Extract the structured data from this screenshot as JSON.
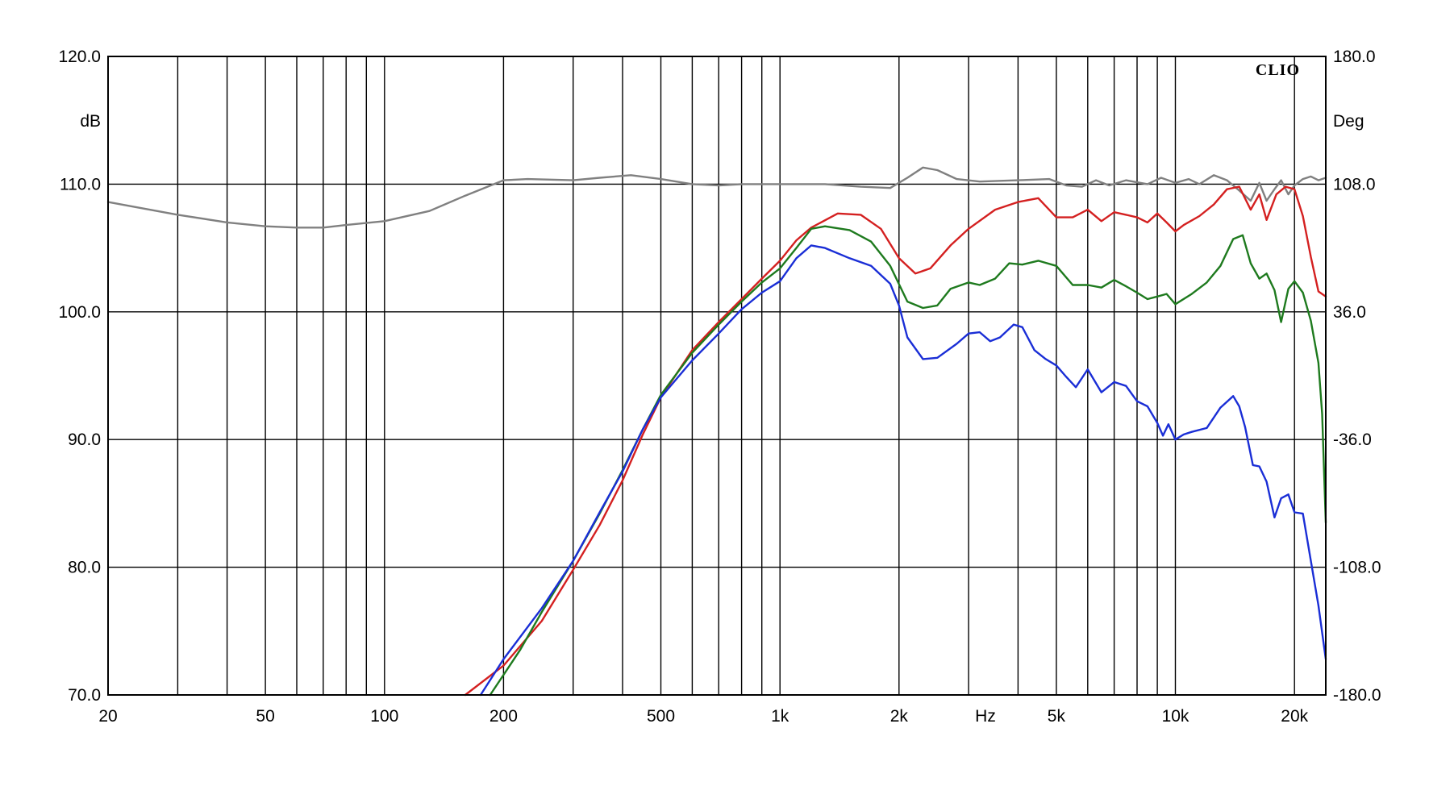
{
  "chart_data": {
    "type": "line",
    "brand": "CLIO",
    "xscale": "log",
    "xlim": [
      20,
      24000
    ],
    "ylim": [
      70,
      120
    ],
    "ylim_right": [
      -180,
      180
    ],
    "grid": true,
    "xlabel": "Hz",
    "ylabel": "dB",
    "ylabel_right": "Deg",
    "x_vertical_grid": [
      20,
      30,
      40,
      50,
      60,
      70,
      80,
      90,
      100,
      200,
      300,
      400,
      500,
      600,
      700,
      800,
      900,
      1000,
      2000,
      3000,
      4000,
      5000,
      6000,
      7000,
      8000,
      9000,
      10000,
      20000
    ],
    "x_ticks": [
      {
        "value": 20,
        "label": "20"
      },
      {
        "value": 50,
        "label": "50"
      },
      {
        "value": 100,
        "label": "100"
      },
      {
        "value": 200,
        "label": "200"
      },
      {
        "value": 500,
        "label": "500"
      },
      {
        "value": 1000,
        "label": "1k"
      },
      {
        "value": 2000,
        "label": "2k"
      },
      {
        "value": 5000,
        "label": "5k"
      },
      {
        "value": 10000,
        "label": "10k"
      },
      {
        "value": 20000,
        "label": "20k"
      }
    ],
    "y_ticks": [
      {
        "value": 70,
        "label": "70.0"
      },
      {
        "value": 80,
        "label": "80.0"
      },
      {
        "value": 90,
        "label": "90.0"
      },
      {
        "value": 100,
        "label": "100.0"
      },
      {
        "value": 110,
        "label": "110.0"
      },
      {
        "value": 120,
        "label": "120.0"
      }
    ],
    "y_right_ticks": [
      {
        "value": -180,
        "label": "-180.0"
      },
      {
        "value": -108,
        "label": "-108.0"
      },
      {
        "value": -36,
        "label": "-36.0"
      },
      {
        "value": 36,
        "label": "36.0"
      },
      {
        "value": 108,
        "label": "108.0"
      },
      {
        "value": 180,
        "label": "180.0"
      }
    ],
    "series": [
      {
        "color": "#808080",
        "points": [
          [
            20,
            108.6
          ],
          [
            30,
            107.6
          ],
          [
            40,
            107.0
          ],
          [
            50,
            106.7
          ],
          [
            60,
            106.6
          ],
          [
            70,
            106.6
          ],
          [
            80,
            106.8
          ],
          [
            100,
            107.1
          ],
          [
            130,
            107.9
          ],
          [
            160,
            109.1
          ],
          [
            200,
            110.3
          ],
          [
            230,
            110.4
          ],
          [
            300,
            110.3
          ],
          [
            350,
            110.5
          ],
          [
            420,
            110.7
          ],
          [
            500,
            110.4
          ],
          [
            600,
            110.0
          ],
          [
            700,
            109.9
          ],
          [
            800,
            110.0
          ],
          [
            1000,
            110.0
          ],
          [
            1300,
            110.0
          ],
          [
            1600,
            109.8
          ],
          [
            1900,
            109.7
          ],
          [
            2100,
            110.5
          ],
          [
            2300,
            111.3
          ],
          [
            2500,
            111.1
          ],
          [
            2800,
            110.4
          ],
          [
            3200,
            110.2
          ],
          [
            4000,
            110.3
          ],
          [
            4800,
            110.4
          ],
          [
            5300,
            109.9
          ],
          [
            5800,
            109.8
          ],
          [
            6300,
            110.3
          ],
          [
            6800,
            109.9
          ],
          [
            7500,
            110.3
          ],
          [
            8500,
            110.0
          ],
          [
            9200,
            110.5
          ],
          [
            10000,
            110.1
          ],
          [
            10800,
            110.4
          ],
          [
            11500,
            110.0
          ],
          [
            12500,
            110.7
          ],
          [
            13500,
            110.3
          ],
          [
            14500,
            109.5
          ],
          [
            15500,
            108.7
          ],
          [
            16300,
            110.1
          ],
          [
            17000,
            108.7
          ],
          [
            17800,
            109.6
          ],
          [
            18500,
            110.3
          ],
          [
            19300,
            109.2
          ],
          [
            20000,
            109.9
          ],
          [
            21000,
            110.4
          ],
          [
            22000,
            110.6
          ],
          [
            23000,
            110.3
          ],
          [
            24000,
            110.5
          ]
        ]
      },
      {
        "color": "#d42020",
        "points": [
          [
            160,
            70.0
          ],
          [
            200,
            72.3
          ],
          [
            250,
            75.8
          ],
          [
            300,
            79.8
          ],
          [
            350,
            83.3
          ],
          [
            400,
            86.8
          ],
          [
            450,
            90.4
          ],
          [
            500,
            93.3
          ],
          [
            600,
            97.0
          ],
          [
            700,
            99.2
          ],
          [
            800,
            101.0
          ],
          [
            900,
            102.6
          ],
          [
            1000,
            104.0
          ],
          [
            1100,
            105.6
          ],
          [
            1200,
            106.6
          ],
          [
            1400,
            107.7
          ],
          [
            1600,
            107.6
          ],
          [
            1800,
            106.5
          ],
          [
            2000,
            104.2
          ],
          [
            2200,
            103.0
          ],
          [
            2400,
            103.4
          ],
          [
            2700,
            105.2
          ],
          [
            3000,
            106.5
          ],
          [
            3500,
            108.0
          ],
          [
            4000,
            108.6
          ],
          [
            4500,
            108.9
          ],
          [
            5000,
            107.4
          ],
          [
            5500,
            107.4
          ],
          [
            6000,
            108.0
          ],
          [
            6500,
            107.1
          ],
          [
            7000,
            107.8
          ],
          [
            7500,
            107.6
          ],
          [
            8000,
            107.4
          ],
          [
            8500,
            107.0
          ],
          [
            9000,
            107.7
          ],
          [
            9500,
            107.0
          ],
          [
            10000,
            106.3
          ],
          [
            10500,
            106.8
          ],
          [
            11500,
            107.5
          ],
          [
            12500,
            108.4
          ],
          [
            13500,
            109.6
          ],
          [
            14500,
            109.8
          ],
          [
            15500,
            108.0
          ],
          [
            16300,
            109.2
          ],
          [
            17000,
            107.2
          ],
          [
            18000,
            109.2
          ],
          [
            19000,
            109.8
          ],
          [
            20000,
            109.6
          ],
          [
            21000,
            107.5
          ],
          [
            22000,
            104.3
          ],
          [
            23000,
            101.6
          ],
          [
            24000,
            101.2
          ]
        ]
      },
      {
        "color": "#1e7a1e",
        "points": [
          [
            185,
            70.0
          ],
          [
            220,
            73.5
          ],
          [
            250,
            76.5
          ],
          [
            300,
            80.5
          ],
          [
            350,
            84.2
          ],
          [
            400,
            87.6
          ],
          [
            450,
            90.8
          ],
          [
            500,
            93.5
          ],
          [
            600,
            96.8
          ],
          [
            700,
            99.0
          ],
          [
            800,
            100.8
          ],
          [
            900,
            102.3
          ],
          [
            1000,
            103.4
          ],
          [
            1100,
            105.0
          ],
          [
            1200,
            106.5
          ],
          [
            1300,
            106.7
          ],
          [
            1500,
            106.4
          ],
          [
            1700,
            105.5
          ],
          [
            1900,
            103.6
          ],
          [
            2100,
            100.8
          ],
          [
            2300,
            100.3
          ],
          [
            2500,
            100.5
          ],
          [
            2700,
            101.8
          ],
          [
            3000,
            102.3
          ],
          [
            3200,
            102.1
          ],
          [
            3500,
            102.6
          ],
          [
            3800,
            103.8
          ],
          [
            4100,
            103.7
          ],
          [
            4500,
            104.0
          ],
          [
            5000,
            103.6
          ],
          [
            5500,
            102.1
          ],
          [
            6000,
            102.1
          ],
          [
            6500,
            101.9
          ],
          [
            7000,
            102.5
          ],
          [
            7500,
            102.0
          ],
          [
            8000,
            101.5
          ],
          [
            8500,
            101.0
          ],
          [
            9000,
            101.2
          ],
          [
            9500,
            101.4
          ],
          [
            10000,
            100.6
          ],
          [
            11000,
            101.4
          ],
          [
            12000,
            102.3
          ],
          [
            13000,
            103.6
          ],
          [
            14000,
            105.7
          ],
          [
            14800,
            106.0
          ],
          [
            15500,
            103.8
          ],
          [
            16300,
            102.6
          ],
          [
            17000,
            103.0
          ],
          [
            17800,
            101.7
          ],
          [
            18500,
            99.2
          ],
          [
            19300,
            101.8
          ],
          [
            20000,
            102.4
          ],
          [
            21000,
            101.5
          ],
          [
            22000,
            99.3
          ],
          [
            23000,
            96.0
          ],
          [
            23500,
            92.0
          ],
          [
            24000,
            83.5
          ]
        ]
      },
      {
        "color": "#1a2ed6",
        "points": [
          [
            175,
            70.0
          ],
          [
            200,
            72.8
          ],
          [
            250,
            76.8
          ],
          [
            300,
            80.5
          ],
          [
            350,
            84.3
          ],
          [
            400,
            87.5
          ],
          [
            450,
            90.8
          ],
          [
            500,
            93.3
          ],
          [
            600,
            96.2
          ],
          [
            700,
            98.3
          ],
          [
            800,
            100.2
          ],
          [
            900,
            101.5
          ],
          [
            1000,
            102.4
          ],
          [
            1100,
            104.2
          ],
          [
            1200,
            105.2
          ],
          [
            1300,
            105.0
          ],
          [
            1500,
            104.2
          ],
          [
            1700,
            103.6
          ],
          [
            1900,
            102.2
          ],
          [
            2000,
            100.5
          ],
          [
            2100,
            98.0
          ],
          [
            2300,
            96.3
          ],
          [
            2500,
            96.4
          ],
          [
            2800,
            97.5
          ],
          [
            3000,
            98.3
          ],
          [
            3200,
            98.4
          ],
          [
            3400,
            97.7
          ],
          [
            3600,
            98.0
          ],
          [
            3900,
            99.0
          ],
          [
            4100,
            98.8
          ],
          [
            4400,
            97.0
          ],
          [
            4700,
            96.3
          ],
          [
            5000,
            95.8
          ],
          [
            5300,
            94.9
          ],
          [
            5600,
            94.1
          ],
          [
            6000,
            95.5
          ],
          [
            6500,
            93.7
          ],
          [
            7000,
            94.5
          ],
          [
            7500,
            94.2
          ],
          [
            8000,
            93.0
          ],
          [
            8500,
            92.6
          ],
          [
            9000,
            91.3
          ],
          [
            9300,
            90.3
          ],
          [
            9600,
            91.2
          ],
          [
            10000,
            90.0
          ],
          [
            10500,
            90.4
          ],
          [
            11000,
            90.6
          ],
          [
            12000,
            90.9
          ],
          [
            13000,
            92.5
          ],
          [
            14000,
            93.4
          ],
          [
            14500,
            92.6
          ],
          [
            15000,
            91.0
          ],
          [
            15700,
            88.0
          ],
          [
            16300,
            87.9
          ],
          [
            17000,
            86.7
          ],
          [
            17800,
            83.9
          ],
          [
            18500,
            85.4
          ],
          [
            19300,
            85.7
          ],
          [
            20000,
            84.3
          ],
          [
            21000,
            84.2
          ],
          [
            22000,
            80.5
          ],
          [
            23000,
            77.0
          ],
          [
            24000,
            72.8
          ]
        ]
      }
    ]
  }
}
